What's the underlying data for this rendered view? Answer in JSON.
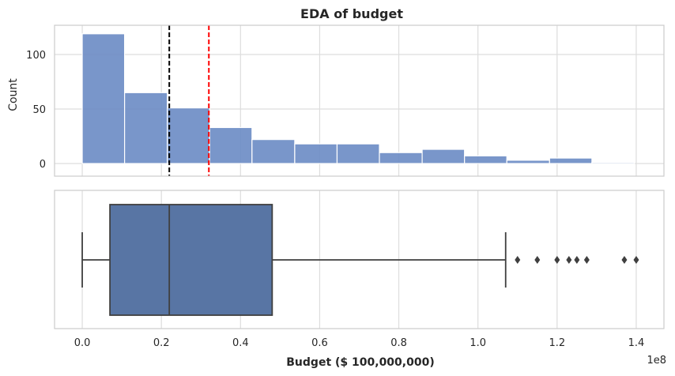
{
  "chart_data": [
    {
      "type": "bar",
      "subtype": "histogram",
      "title": "EDA of budget",
      "xlabel": "",
      "ylabel": "Count",
      "ylim": [
        0,
        126
      ],
      "y_ticks": [
        0,
        50,
        100
      ],
      "bins": [
        {
          "x0": 0.0,
          "x1": 0.107,
          "count": 119
        },
        {
          "x0": 0.107,
          "x1": 0.215,
          "count": 65
        },
        {
          "x0": 0.215,
          "x1": 0.322,
          "count": 51
        },
        {
          "x0": 0.322,
          "x1": 0.429,
          "count": 33
        },
        {
          "x0": 0.429,
          "x1": 0.537,
          "count": 22
        },
        {
          "x0": 0.537,
          "x1": 0.644,
          "count": 18
        },
        {
          "x0": 0.644,
          "x1": 0.751,
          "count": 18
        },
        {
          "x0": 0.751,
          "x1": 0.859,
          "count": 10
        },
        {
          "x0": 0.859,
          "x1": 0.966,
          "count": 13
        },
        {
          "x0": 0.966,
          "x1": 1.073,
          "count": 7
        },
        {
          "x0": 1.073,
          "x1": 1.181,
          "count": 3
        },
        {
          "x0": 1.181,
          "x1": 1.288,
          "count": 5
        },
        {
          "x0": 1.288,
          "x1": 1.395,
          "count": 1
        }
      ],
      "bar_color": "#6a8bc4",
      "vlines": [
        {
          "x": 0.22,
          "color": "#000000",
          "style": "dashed"
        },
        {
          "x": 0.32,
          "color": "#ff0000",
          "style": "dashed"
        }
      ],
      "grid": true
    },
    {
      "type": "boxplot",
      "xlabel": "Budget ($ 100,000,000)",
      "x_scale_label": "1e8",
      "xlim": [
        -0.07,
        1.47
      ],
      "x_ticks": [
        "0.0",
        "0.2",
        "0.4",
        "0.6",
        "0.8",
        "1.0",
        "1.2",
        "1.4"
      ],
      "x_tick_values": [
        0.0,
        0.2,
        0.4,
        0.6,
        0.8,
        1.0,
        1.2,
        1.4
      ],
      "box": {
        "whisker_low": 0.0,
        "q1": 0.07,
        "median": 0.22,
        "q3": 0.48,
        "whisker_high": 1.07
      },
      "outliers": [
        1.1,
        1.15,
        1.2,
        1.23,
        1.25,
        1.275,
        1.37,
        1.4
      ],
      "box_color": "#5875a4",
      "grid": true
    }
  ]
}
